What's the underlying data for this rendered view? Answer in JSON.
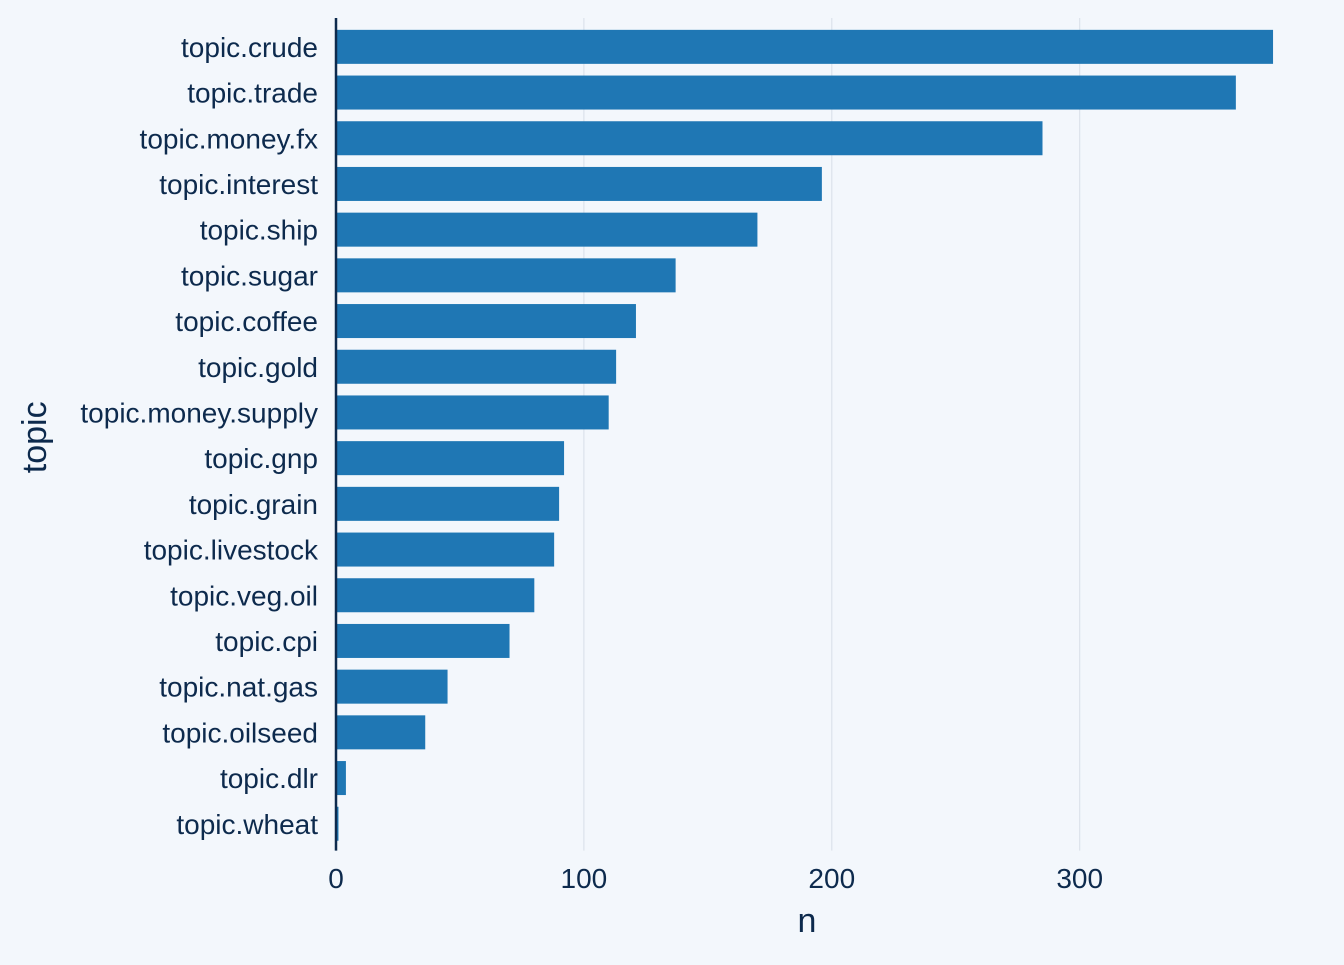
{
  "chart_data": {
    "type": "bar",
    "orientation": "horizontal",
    "categories": [
      "topic.crude",
      "topic.trade",
      "topic.money.fx",
      "topic.interest",
      "topic.ship",
      "topic.sugar",
      "topic.coffee",
      "topic.gold",
      "topic.money.supply",
      "topic.gnp",
      "topic.grain",
      "topic.livestock",
      "topic.veg.oil",
      "topic.cpi",
      "topic.nat.gas",
      "topic.oilseed",
      "topic.dlr",
      "topic.wheat"
    ],
    "values": [
      378,
      363,
      285,
      196,
      170,
      137,
      121,
      113,
      110,
      92,
      90,
      88,
      80,
      70,
      45,
      36,
      4,
      1
    ],
    "xlabel": "n",
    "ylabel": "topic",
    "xlim": [
      0,
      380
    ],
    "x_ticks": [
      0,
      100,
      200,
      300
    ],
    "x_tick_labels": [
      "0",
      "100",
      "200",
      "300"
    ],
    "grid": "vertical",
    "bar_color": "#1f77b4",
    "background_color": "#f3f7fc"
  }
}
